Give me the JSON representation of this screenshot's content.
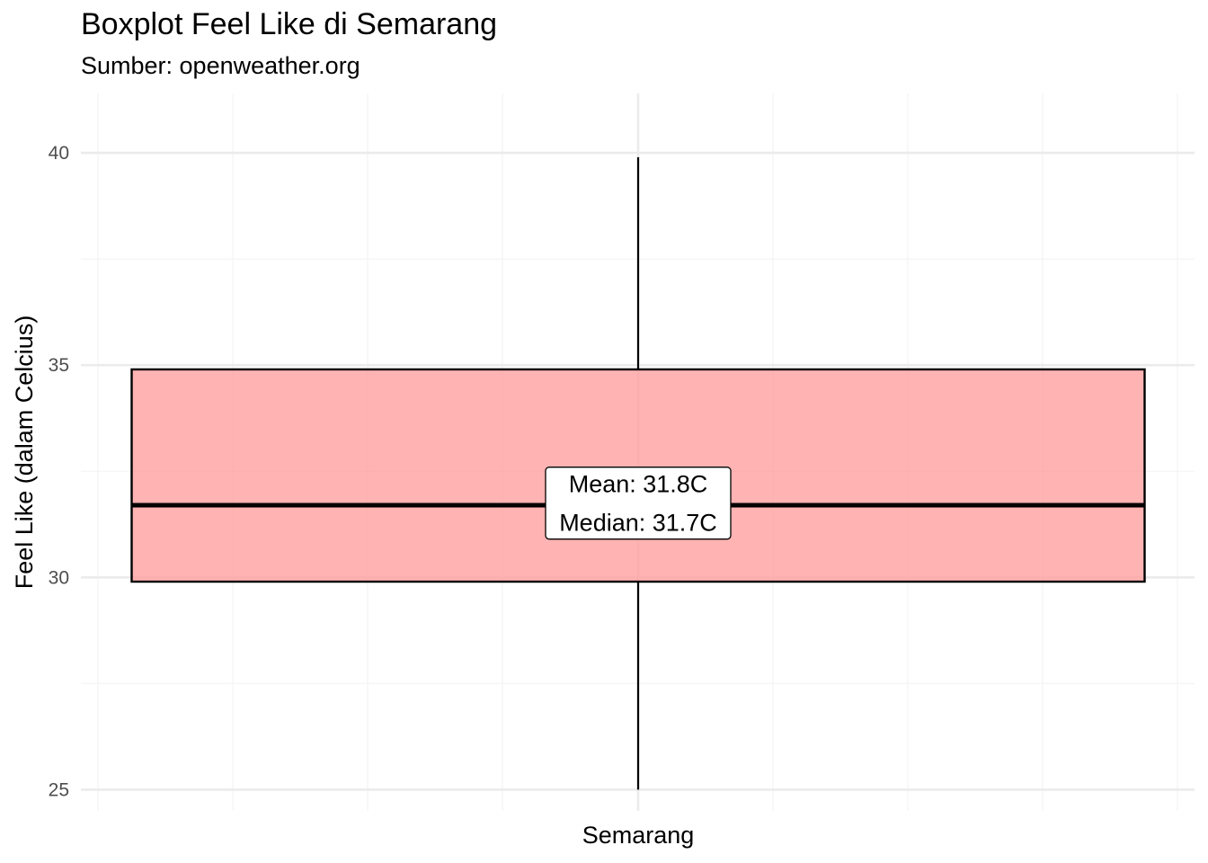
{
  "chart_data": {
    "type": "boxplot",
    "title": "Boxplot Feel Like di Semarang",
    "subtitle": "Sumber: openweather.org",
    "xlabel": "",
    "ylabel": "Feel Like (dalam Celcius)",
    "categories": [
      "Semarang"
    ],
    "boxes": [
      {
        "category": "Semarang",
        "min": 25.0,
        "q1": 29.9,
        "median": 31.7,
        "q3": 34.9,
        "max": 39.9,
        "mean": 31.8
      }
    ],
    "annotation": {
      "lines": [
        "Mean: 31.8C",
        "Median: 31.7C"
      ]
    },
    "ylim": [
      24.5,
      41.4
    ],
    "y_ticks": [
      25,
      30,
      35,
      40
    ],
    "y_tick_labels": [
      "25",
      "30",
      "35",
      "40"
    ],
    "grid": true,
    "legend": "none",
    "colors": {
      "box_fill": "#ff9999",
      "box_fill_opacity": 0.75,
      "box_stroke": "#000000",
      "grid_major": "#ebebeb",
      "grid_minor": "#f4f4f4",
      "tick_text": "#4d4d4d"
    }
  }
}
